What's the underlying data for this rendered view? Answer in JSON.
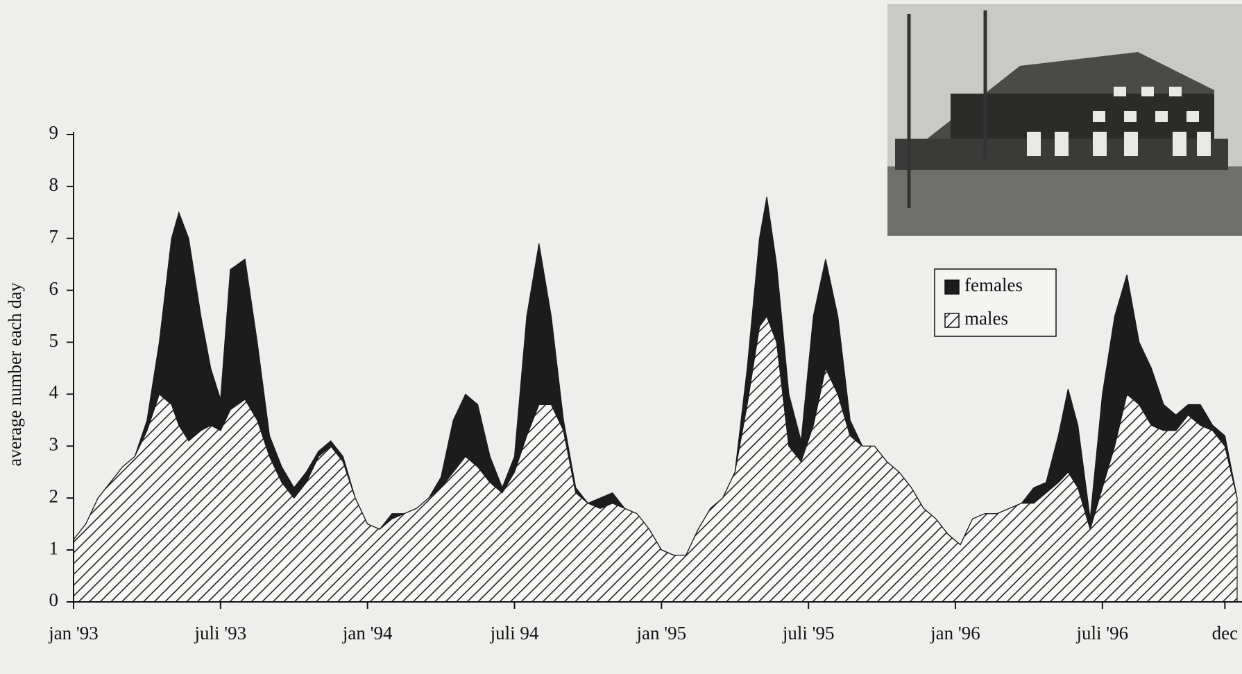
{
  "chart_data": {
    "type": "stacked-area",
    "y_label": "average number each day",
    "x": [
      0,
      0.5,
      1,
      1.5,
      2,
      2.5,
      3,
      3.5,
      4,
      4.3,
      4.7,
      5.2,
      5.6,
      6,
      6.4,
      7,
      7.5,
      8,
      8.5,
      9,
      9.5,
      10,
      10.5,
      11,
      11.5,
      12,
      12.5,
      13,
      13.5,
      14,
      14.5,
      15,
      15.5,
      16,
      16.5,
      17,
      17.5,
      18,
      18.5,
      19,
      19.5,
      20,
      20.5,
      21,
      21.5,
      22,
      22.5,
      23,
      23.5,
      24,
      24.5,
      25,
      25.5,
      26,
      26.5,
      27,
      27.5,
      28,
      28.3,
      28.7,
      29.2,
      29.7,
      30.2,
      30.7,
      31.2,
      31.7,
      32.2,
      32.7,
      33.2,
      33.7,
      34.2,
      34.7,
      35.2,
      35.7,
      36.2,
      36.7,
      37.2,
      37.7,
      38.2,
      38.7,
      39.2,
      39.7,
      40.2,
      40.6,
      41,
      41.5,
      42,
      42.5,
      43,
      43.5,
      44,
      44.5,
      45,
      45.5,
      46,
      46.5,
      47,
      47.5
    ],
    "series": [
      {
        "name": "males",
        "color": "#222222",
        "fill": "hatch",
        "values": [
          1.2,
          1.5,
          2.0,
          2.3,
          2.6,
          2.8,
          3.3,
          4.0,
          3.8,
          3.4,
          3.1,
          3.3,
          3.4,
          3.3,
          3.7,
          3.9,
          3.5,
          2.8,
          2.3,
          2.0,
          2.3,
          2.8,
          3.0,
          2.7,
          2.0,
          1.5,
          1.4,
          1.6,
          1.7,
          1.8,
          2.0,
          2.2,
          2.5,
          2.8,
          2.6,
          2.3,
          2.1,
          2.5,
          3.2,
          3.8,
          3.8,
          3.3,
          2.1,
          1.9,
          1.8,
          1.9,
          1.8,
          1.7,
          1.4,
          1.0,
          0.9,
          0.9,
          1.4,
          1.8,
          2.0,
          2.5,
          3.8,
          5.3,
          5.5,
          5.0,
          3.0,
          2.7,
          3.4,
          4.5,
          4.0,
          3.2,
          3.0,
          3.0,
          2.7,
          2.5,
          2.2,
          1.8,
          1.6,
          1.3,
          1.1,
          1.6,
          1.7,
          1.7,
          1.8,
          1.9,
          1.9,
          2.1,
          2.3,
          2.5,
          2.2,
          1.4,
          2.2,
          3.0,
          4.0,
          3.8,
          3.4,
          3.3,
          3.3,
          3.6,
          3.4,
          3.3,
          3.0,
          2.0
        ]
      },
      {
        "name": "females",
        "color": "#1c1c1c",
        "fill": "solid",
        "values": [
          0,
          0,
          0,
          0,
          0,
          0,
          0.2,
          1.0,
          3.2,
          4.1,
          3.9,
          2.2,
          1.1,
          0.6,
          2.7,
          2.7,
          1.5,
          0.4,
          0.3,
          0.2,
          0.2,
          0.1,
          0.1,
          0.1,
          0,
          0,
          0,
          0.1,
          0,
          0,
          0,
          0.2,
          1.0,
          1.2,
          1.2,
          0.5,
          0.1,
          0.3,
          2.3,
          3.1,
          1.7,
          0.2,
          0.1,
          0,
          0.2,
          0.2,
          0,
          0,
          0,
          0,
          0,
          0,
          0,
          0,
          0,
          0,
          0.7,
          1.7,
          2.3,
          1.5,
          1.0,
          0.4,
          2.1,
          2.1,
          1.5,
          0.3,
          0,
          0,
          0,
          0,
          0,
          0,
          0,
          0,
          0,
          0,
          0,
          0,
          0,
          0,
          0.3,
          0.2,
          0.9,
          1.6,
          1.2,
          0.2,
          1.8,
          2.5,
          2.3,
          1.2,
          1.1,
          0.5,
          0.3,
          0.2,
          0.4,
          0.1,
          0.2,
          0
        ]
      }
    ],
    "legend_order": [
      1,
      0
    ],
    "xlim": [
      0,
      47.5
    ],
    "xticks": [
      {
        "value": 0,
        "label": "jan '93"
      },
      {
        "value": 6,
        "label": "juli '93"
      },
      {
        "value": 12,
        "label": "jan '94"
      },
      {
        "value": 18,
        "label": "juli 94"
      },
      {
        "value": 24,
        "label": "jan '95"
      },
      {
        "value": 30,
        "label": "juli '95"
      },
      {
        "value": 36,
        "label": "jan '96"
      },
      {
        "value": 42,
        "label": "juli '96"
      },
      {
        "value": 47,
        "label": "dec"
      }
    ],
    "ylim": [
      0,
      9
    ],
    "yticks": [
      0,
      1,
      2,
      3,
      4,
      5,
      6,
      7,
      8,
      9
    ]
  }
}
